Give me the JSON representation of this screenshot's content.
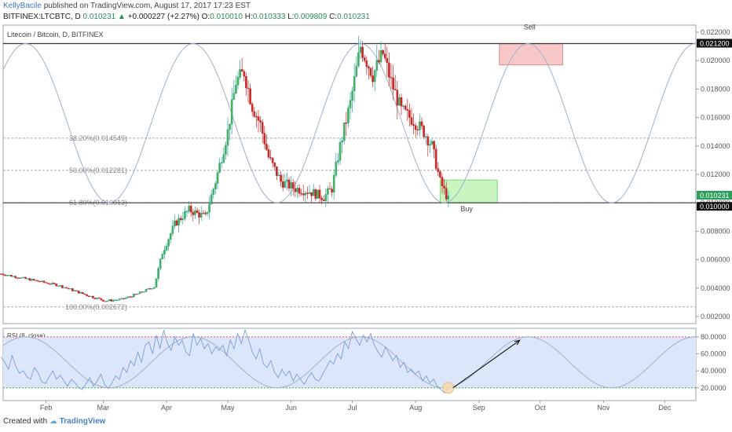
{
  "header": {
    "author": "KellyBacile",
    "published": " published on TradingView.com, August 17, 2017 17:23 EST",
    "symbol": "BITFINEX:LTCBTC, D",
    "last": "0.010231",
    "change_arrow": "▲",
    "change": "+0.000227 (+2.27%)",
    "o_label": "O:",
    "o": "0.010010",
    "h_label": "H:",
    "h": "0.010333",
    "l_label": "L:",
    "l": "0.009809",
    "c_label": "C:",
    "c": "0.010231"
  },
  "footer": {
    "created_with": "Created with",
    "brand": "TradingView"
  },
  "colors": {
    "up": "#26a69a",
    "upFill": "#4caf50",
    "down": "#c62828",
    "wave": "#9fb0cc",
    "rsiLine": "#7a9fd4",
    "rsiBand": "#dce6fb",
    "sellBox": "#f8c8c8",
    "buyBox": "#c8f5c0"
  },
  "chart_data": [
    {
      "type": "candlestick",
      "title": "Litecoin / Bitcoin, D, BITFINEX",
      "x_ticks": [
        "Feb",
        "Mar",
        "Apr",
        "May",
        "Jun",
        "Jul",
        "Aug",
        "Sep",
        "Oct",
        "Nov",
        "Dec"
      ],
      "y_ticks": [
        "0.022000",
        "0.020000",
        "0.018000",
        "0.016000",
        "0.014000",
        "0.012000",
        "0.010000",
        "0.008000",
        "0.006000",
        "0.004000",
        "0.002000"
      ],
      "ylim": [
        0.0015,
        0.0225
      ],
      "price_tags": [
        "0.021200",
        "0.010231",
        "0.010000"
      ],
      "resistance": 0.0212,
      "support": 0.01,
      "fib_levels": [
        {
          "label": "38.20%(0.014549)",
          "value": 0.014549
        },
        {
          "label": "50.00%(0.012281)",
          "value": 0.012281
        },
        {
          "label": "61.80%(0.010013)",
          "value": 0.010013
        },
        {
          "label": "100.00%(0.002672)",
          "value": 0.002672
        }
      ],
      "annotations": {
        "sell": "Sell",
        "buy": "Buy"
      },
      "sell_zone": {
        "x_start": "2017-09-11",
        "x_end": "2017-10-12",
        "y_low": 0.0197,
        "y_high": 0.0212
      },
      "buy_zone": {
        "x_start": "2017-08-13",
        "x_end": "2017-09-10",
        "y_low": 0.01,
        "y_high": 0.0116
      },
      "price_path": [
        [
          "2017-01-10",
          0.005
        ],
        [
          "2017-01-24",
          0.0046
        ],
        [
          "2017-02-07",
          0.0042
        ],
        [
          "2017-02-21",
          0.0035
        ],
        [
          "2017-03-02",
          0.0031
        ],
        [
          "2017-03-10",
          0.0032
        ],
        [
          "2017-03-18",
          0.0036
        ],
        [
          "2017-03-26",
          0.0041
        ],
        [
          "2017-03-30",
          0.0065
        ],
        [
          "2017-04-05",
          0.0085
        ],
        [
          "2017-04-12",
          0.0095
        ],
        [
          "2017-04-20",
          0.009
        ],
        [
          "2017-04-25",
          0.0115
        ],
        [
          "2017-05-01",
          0.015
        ],
        [
          "2017-05-05",
          0.0185
        ],
        [
          "2017-05-09",
          0.0192
        ],
        [
          "2017-05-13",
          0.0168
        ],
        [
          "2017-05-17",
          0.0155
        ],
        [
          "2017-05-21",
          0.0132
        ],
        [
          "2017-05-27",
          0.0115
        ],
        [
          "2017-06-03",
          0.011
        ],
        [
          "2017-06-10",
          0.0108
        ],
        [
          "2017-06-17",
          0.0104
        ],
        [
          "2017-06-21",
          0.011
        ],
        [
          "2017-06-25",
          0.014
        ],
        [
          "2017-06-30",
          0.017
        ],
        [
          "2017-07-05",
          0.021
        ],
        [
          "2017-07-11",
          0.019
        ],
        [
          "2017-07-16",
          0.0205
        ],
        [
          "2017-07-20",
          0.0185
        ],
        [
          "2017-07-25",
          0.0165
        ],
        [
          "2017-07-31",
          0.0158
        ],
        [
          "2017-08-05",
          0.015
        ],
        [
          "2017-08-09",
          0.014
        ],
        [
          "2017-08-13",
          0.0115
        ],
        [
          "2017-08-17",
          0.0102
        ]
      ],
      "wave": {
        "period_days": 82,
        "peak_date": "2017-07-05",
        "high": 0.0212,
        "low": 0.01
      }
    },
    {
      "type": "line",
      "title": "RSI (8, close)",
      "y_ticks": [
        "80.0000",
        "60.0000",
        "40.0000",
        "20.0000"
      ],
      "ylim": [
        5,
        90
      ],
      "overbought": 80,
      "oversold": 20,
      "series": [
        {
          "values": [
            56,
            50,
            42,
            58,
            45,
            37,
            40,
            33,
            30,
            44,
            38,
            27,
            25,
            33,
            40,
            30,
            35,
            28,
            22,
            30,
            26,
            20,
            18,
            25,
            32,
            22,
            28,
            36,
            24,
            19,
            26,
            34,
            30,
            44,
            38,
            52,
            46,
            62,
            50,
            70,
            74,
            60,
            82,
            66,
            88,
            72,
            64,
            80,
            70,
            76,
            62,
            58,
            84,
            70,
            78,
            66,
            72,
            60,
            68,
            64,
            70,
            58,
            76,
            66,
            84,
            72,
            88,
            76,
            62,
            54,
            66,
            48,
            44,
            52,
            38,
            32,
            42,
            34,
            40,
            28,
            36,
            30,
            24,
            32,
            38,
            30,
            28,
            36,
            44,
            52,
            48,
            60,
            54,
            74,
            66,
            86,
            78,
            70,
            82,
            74,
            84,
            70,
            62,
            56,
            68,
            60,
            52,
            58,
            44,
            50,
            38,
            42,
            36,
            40,
            28,
            34,
            26,
            30,
            22,
            18,
            14,
            20
          ]
        }
      ],
      "projection_end": {
        "date": "2017-09-21",
        "value": 76
      },
      "wave": {
        "period_days": 82,
        "peak_date": "2017-07-05",
        "high": 80,
        "low": 20
      }
    }
  ]
}
